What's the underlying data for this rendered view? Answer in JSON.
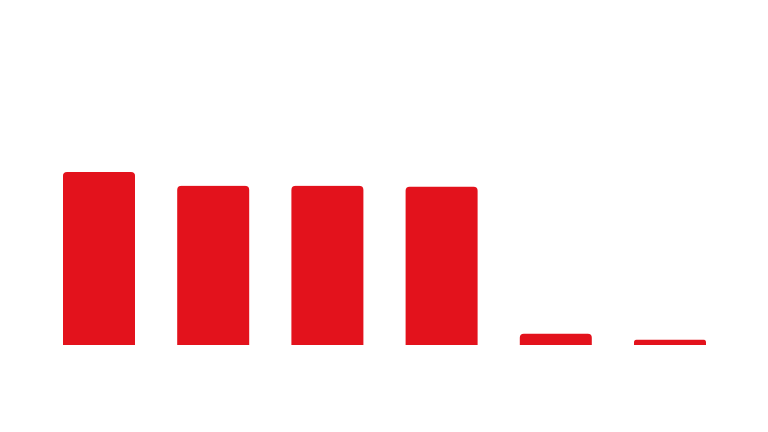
{
  "colors": {
    "background": "#ffffff",
    "bar": "#e3121c"
  },
  "chart_data": {
    "type": "bar",
    "categories": [
      "",
      "",
      "",
      "",
      "",
      ""
    ],
    "values": [
      100,
      92,
      92,
      91.5,
      6.5,
      3
    ],
    "ylim": [
      0,
      100
    ],
    "grid": false,
    "legend": "none",
    "title": "",
    "xlabel": "",
    "ylabel": ""
  }
}
